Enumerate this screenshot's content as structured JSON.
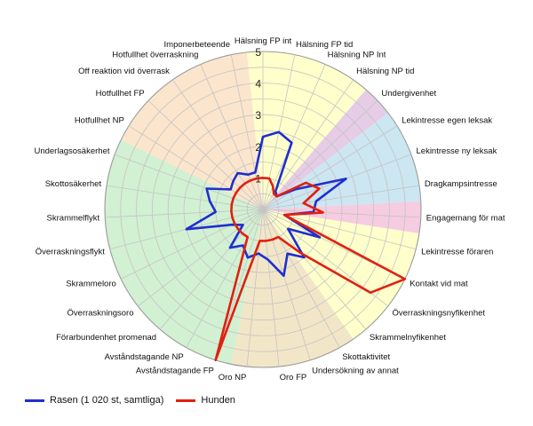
{
  "chart_data": {
    "type": "radar",
    "title": "",
    "r_range": [
      0,
      5
    ],
    "r_ticks": [
      "1",
      "2",
      "3",
      "4",
      "5"
    ],
    "categories": [
      "Hälsning FP int",
      "Hälsning FP tid",
      "Hälsning NP Int",
      "Hälsning NP tid",
      "Undergivenhet",
      "Lekintresse egen leksak",
      "Lekintresse ny leksak",
      "Dragkampsintresse",
      "Engagemang för mat",
      "Lekintresse föraren",
      "Kontakt vid mat",
      "Överraskningsnyfikenhet",
      "Skrammelnyfikenhet",
      "Skottaktivitet",
      "Undersökning av annat",
      "Oro FP",
      "Oro NP",
      "Avståndstagande FP",
      "Avståndstagande NP",
      "Förarbundenhet promenad",
      "Överraskningsoro",
      "Skrammeloro",
      "Överraskningsflykt",
      "Skrammelflykt",
      "Skottosäkerhet",
      "Underlagsosäkerhet",
      "Hotfullhet NP",
      "Hotfullhet FP",
      "Off reaktion vid överrask",
      "Hotfullhet överraskning",
      "Imponerbeteende"
    ],
    "sectors": [
      {
        "from": 0,
        "to": 3,
        "color": "#ffffcc"
      },
      {
        "from": 4,
        "to": 4,
        "color": "#e6cce6"
      },
      {
        "from": 5,
        "to": 7,
        "color": "#cce6f2"
      },
      {
        "from": 8,
        "to": 8,
        "color": "#f5cce0"
      },
      {
        "from": 9,
        "to": 12,
        "color": "#ffffcc"
      },
      {
        "from": 13,
        "to": 16,
        "color": "#f2e6c8"
      },
      {
        "from": 17,
        "to": 25,
        "color": "#d2f0d2"
      },
      {
        "from": 26,
        "to": 30,
        "color": "#fbe5cc"
      }
    ],
    "series": [
      {
        "name": "Rasen (1 020 st, samtliga)",
        "color": "#1f2fd0",
        "values": [
          2.3,
          2.5,
          2.3,
          0.7,
          0.6,
          1.2,
          2.8,
          1.7,
          1.6,
          0.7,
          2.0,
          1.0,
          2.0,
          1.6,
          2.2,
          1.6,
          1.4,
          1.6,
          1.3,
          1.6,
          0.8,
          1.1,
          2.5,
          1.5,
          1.7,
          1.9,
          1.2,
          1.3,
          1.4,
          1.2,
          1.2
        ]
      },
      {
        "name": "Hunden",
        "color": "#e02010",
        "values": [
          1.0,
          1.0,
          0.8,
          0.6,
          0.6,
          1.6,
          1.9,
          1.3,
          1.9,
          0.7,
          5.0,
          4.3,
          1.8,
          1.0,
          1.0,
          1.0,
          1.0,
          5.0,
          1.0,
          1.0,
          1.0,
          1.0,
          1.0,
          1.0,
          1.0,
          1.0,
          1.0,
          1.0,
          1.0,
          1.0,
          1.0
        ]
      }
    ]
  }
}
